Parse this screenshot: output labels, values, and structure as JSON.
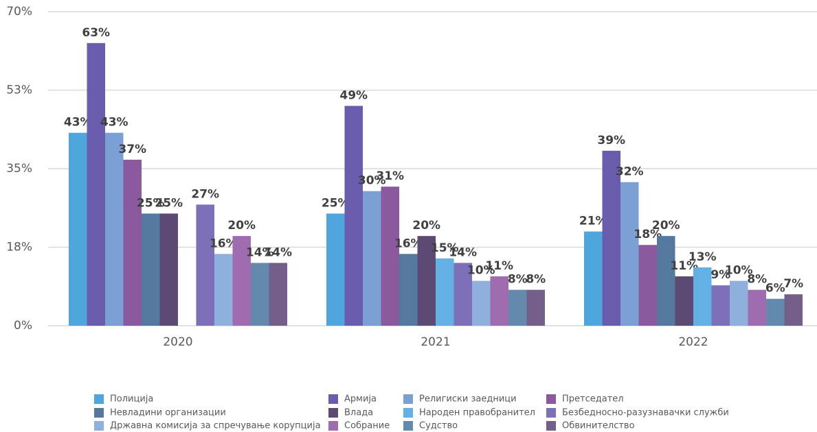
{
  "chart_data": {
    "type": "bar",
    "categories": [
      "2020",
      "2021",
      "2022"
    ],
    "ylim": [
      0,
      70
    ],
    "yticks": [
      {
        "value": 0,
        "label": "0%"
      },
      {
        "value": 17.5,
        "label": "18%"
      },
      {
        "value": 35,
        "label": "35%"
      },
      {
        "value": 52.5,
        "label": "53%"
      },
      {
        "value": 70,
        "label": "70%"
      }
    ],
    "grid": true,
    "legend": "bottom",
    "series": [
      {
        "name": "Полиција",
        "color": "#4ea6dc",
        "values": [
          43,
          25,
          21
        ],
        "value_labels": [
          "43%",
          "25%",
          "21%"
        ]
      },
      {
        "name": "Армија",
        "color": "#6a5cad",
        "values": [
          63,
          49,
          39
        ],
        "value_labels": [
          "63%",
          "49%",
          "39%"
        ]
      },
      {
        "name": "Религиски заедници",
        "color": "#7aa0d4",
        "values": [
          43,
          30,
          32
        ],
        "value_labels": [
          "43%",
          "30%",
          "32%"
        ]
      },
      {
        "name": "Претседател",
        "color": "#8b5a9e",
        "values": [
          37,
          31,
          18
        ],
        "value_labels": [
          "37%",
          "31%",
          "18%"
        ]
      },
      {
        "name": "Невладини организации",
        "color": "#54789e",
        "values": [
          25,
          16,
          20
        ],
        "value_labels": [
          "25%",
          "16%",
          "20%"
        ]
      },
      {
        "name": "Влада",
        "color": "#5d4a72",
        "values": [
          25,
          20,
          11
        ],
        "value_labels": [
          "25%",
          "20%",
          "11%"
        ]
      },
      {
        "name": "Народен правобранител",
        "color": "#63b0e4",
        "values": [
          null,
          15,
          13
        ],
        "value_labels": [
          null,
          "15%",
          "13%"
        ]
      },
      {
        "name": "Безбедносно-разузнавачки служби",
        "color": "#7e6fb9",
        "values": [
          27,
          14,
          9
        ],
        "value_labels": [
          "27%",
          "14%",
          "9%"
        ]
      },
      {
        "name": "Државна комисија за спречување корупција",
        "color": "#8fafdc",
        "values": [
          16,
          10,
          10
        ],
        "value_labels": [
          "16%",
          "10%",
          "10%"
        ]
      },
      {
        "name": "Собрание",
        "color": "#9f6cb0",
        "values": [
          20,
          11,
          8
        ],
        "value_labels": [
          "20%",
          "11%",
          "8%"
        ]
      },
      {
        "name": "Судство",
        "color": "#6389ad",
        "values": [
          14,
          8,
          6
        ],
        "value_labels": [
          "14%",
          "8%",
          "6%"
        ]
      },
      {
        "name": "Обвинителство",
        "color": "#735f8a",
        "values": [
          14,
          8,
          7
        ],
        "value_labels": [
          "14%",
          "8%",
          "7%"
        ]
      }
    ]
  }
}
